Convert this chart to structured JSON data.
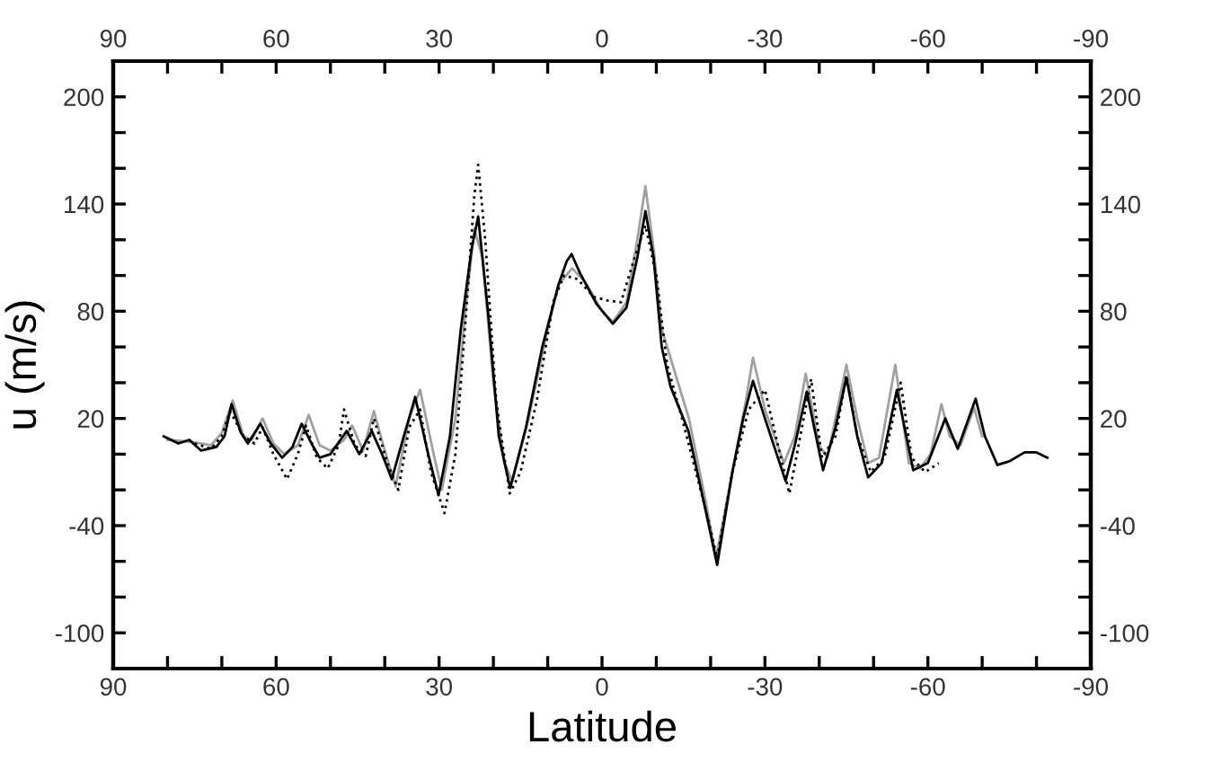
{
  "chart_data": {
    "type": "line",
    "xlabel": "Latitude",
    "ylabel": "u (m/s)",
    "xlim": [
      90,
      -90
    ],
    "xticks": [
      90,
      {
        "value": 80,
        "label": null
      },
      {
        "value": 70,
        "label": null
      },
      60,
      {
        "value": 50,
        "label": null
      },
      {
        "value": 40,
        "label": null
      },
      30,
      {
        "value": 20,
        "label": null
      },
      {
        "value": 10,
        "label": null
      },
      0,
      {
        "value": -10,
        "label": null
      },
      {
        "value": -20,
        "label": null
      },
      -30,
      {
        "value": -40,
        "label": null
      },
      {
        "value": -50,
        "label": null
      },
      -60,
      {
        "value": -70,
        "label": null
      },
      {
        "value": -80,
        "label": null
      },
      -90
    ],
    "x2lim": [
      90,
      -90
    ],
    "x2ticks": [
      90,
      {
        "value": 80,
        "label": null
      },
      {
        "value": 70,
        "label": null
      },
      60,
      {
        "value": 50,
        "label": null
      },
      {
        "value": 40,
        "label": null
      },
      30,
      {
        "value": 20,
        "label": null
      },
      {
        "value": 10,
        "label": null
      },
      0,
      {
        "value": -10,
        "label": null
      },
      {
        "value": -20,
        "label": null
      },
      -30,
      {
        "value": -40,
        "label": null
      },
      {
        "value": -50,
        "label": null
      },
      -60,
      {
        "value": -70,
        "label": null
      },
      {
        "value": -80,
        "label": null
      },
      -90
    ],
    "ylim": [
      -120,
      220
    ],
    "yticks": [
      -100,
      {
        "value": -80,
        "label": null
      },
      {
        "value": -60,
        "label": null
      },
      -40,
      {
        "value": -20,
        "label": null
      },
      {
        "value": 0,
        "label": null
      },
      20,
      {
        "value": 40,
        "label": null
      },
      {
        "value": 60,
        "label": null
      },
      80,
      {
        "value": 100,
        "label": null
      },
      {
        "value": 120,
        "label": null
      },
      140,
      {
        "value": 160,
        "label": null
      },
      {
        "value": 180,
        "label": null
      },
      200
    ],
    "y2lim": [
      -120,
      220
    ],
    "y2ticks": [
      -100,
      {
        "value": -80,
        "label": null
      },
      {
        "value": -60,
        "label": null
      },
      -40,
      {
        "value": -20,
        "label": null
      },
      {
        "value": 0,
        "label": null
      },
      20,
      {
        "value": 40,
        "label": null
      },
      {
        "value": 60,
        "label": null
      },
      80,
      {
        "value": 100,
        "label": null
      },
      {
        "value": 120,
        "label": null
      },
      140,
      {
        "value": 160,
        "label": null
      },
      {
        "value": 180,
        "label": null
      },
      200
    ],
    "grid": false,
    "legend": false,
    "series": [
      {
        "color": "#a0a0a0",
        "line_style": "solid",
        "x": [
          80,
          76,
          72,
          70,
          68,
          66,
          64.5,
          62.5,
          60.5,
          58.5,
          56,
          54,
          52,
          50,
          47.5,
          46,
          44,
          42,
          40,
          38,
          35.5,
          33.5,
          31,
          29.5,
          27,
          25,
          23.5,
          22,
          20,
          18,
          16.5,
          13.5,
          10,
          8,
          5.5,
          3,
          0,
          -2,
          -4.5,
          -6.5,
          -8,
          -9.5,
          -11,
          -13,
          -16,
          -19,
          -21,
          -24,
          -26.5,
          -27.8,
          -30,
          -33.5,
          -35.5,
          -37.5,
          -40,
          -41.5,
          -43,
          -45,
          -47,
          -49,
          -51,
          -54,
          -56.5,
          -58.5,
          -60.5,
          -62.5,
          -64,
          -66,
          -68.5,
          -70
        ],
        "values": [
          8,
          7,
          5,
          12,
          30,
          10,
          8,
          20,
          6,
          0,
          5,
          22,
          5,
          2,
          8,
          16,
          2,
          24,
          2,
          -18,
          20,
          36,
          0,
          -20,
          20,
          85,
          126,
          110,
          40,
          -5,
          -15,
          20,
          70,
          95,
          104,
          96,
          80,
          74,
          85,
          120,
          150,
          115,
          70,
          50,
          20,
          -25,
          -58,
          -10,
          30,
          54,
          25,
          -5,
          10,
          45,
          5,
          -2,
          20,
          50,
          20,
          -5,
          -2,
          50,
          -5,
          -8,
          0,
          28,
          10,
          5,
          26,
          10
        ]
      },
      {
        "color": "#000000",
        "line_style": "dotted",
        "x": [
          75,
          72,
          70,
          68.5,
          66,
          64,
          62.5,
          60.5,
          58,
          56,
          54.5,
          52.5,
          50.5,
          48.5,
          47.5,
          45.5,
          43.5,
          42,
          39.5,
          37.5,
          35.5,
          33.5,
          31.5,
          29,
          27,
          25,
          23.5,
          22.8,
          21.5,
          19.5,
          17,
          15,
          12,
          9,
          7,
          4.5,
          1.5,
          -1,
          -3.5,
          -6,
          -8,
          -10,
          -12,
          -15,
          -19,
          -21.2,
          -24,
          -27,
          -30,
          -32,
          -34.5,
          -36.5,
          -38.5,
          -40.5,
          -43,
          -45,
          -47,
          -49.5,
          -52,
          -55,
          -57,
          -59.5,
          -62
        ],
        "values": [
          6,
          3,
          10,
          24,
          10,
          6,
          15,
          0,
          -14,
          0,
          16,
          -2,
          -8,
          5,
          25,
          5,
          -1,
          20,
          -5,
          -20,
          15,
          25,
          -10,
          -33,
          0,
          80,
          145,
          162,
          120,
          30,
          -22,
          -10,
          30,
          85,
          100,
          98,
          88,
          86,
          85,
          110,
          128,
          100,
          50,
          17,
          -30,
          -58,
          -10,
          25,
          36,
          10,
          -22,
          10,
          42,
          -2,
          10,
          44,
          10,
          -10,
          -2,
          40,
          -2,
          -10,
          -5
        ]
      },
      {
        "color": "#000000",
        "line_style": "solid",
        "x": [
          80.7,
          78,
          76,
          73.8,
          71,
          69.5,
          68.2,
          66.5,
          65.2,
          62.9,
          61,
          58.9,
          57,
          55.3,
          53.5,
          52,
          50,
          47,
          44.7,
          42.4,
          40.5,
          38.7,
          36.5,
          34.4,
          32,
          30.1,
          28,
          26,
          24,
          22.8,
          21,
          19,
          16.9,
          14,
          11,
          8,
          6.5,
          5.6,
          4,
          1,
          -2,
          -4.5,
          -6.5,
          -8,
          -9.5,
          -11,
          -12.6,
          -15.9,
          -18.9,
          -21.2,
          -24,
          -26,
          -27.8,
          -30,
          -33.8,
          -35.5,
          -37.7,
          -40.7,
          -43,
          -45,
          -47,
          -49,
          -51.5,
          -54.3,
          -57.3,
          -60,
          -63.2,
          -65.5,
          -68.8,
          -70.5,
          -72.8,
          -75,
          -77.8,
          -80,
          -82
        ],
        "values": [
          10,
          6,
          8,
          2,
          4,
          10,
          28,
          12,
          6,
          17,
          6,
          -2,
          4,
          17,
          6,
          -2,
          0,
          13,
          0,
          13,
          0,
          -14,
          10,
          32,
          0,
          -23,
          10,
          70,
          115,
          133,
          80,
          10,
          -19,
          15,
          60,
          95,
          108,
          112,
          101,
          84,
          73,
          82,
          110,
          136,
          110,
          60,
          38,
          13,
          -29,
          -62,
          -10,
          20,
          41,
          20,
          -15,
          5,
          35,
          -9,
          15,
          43,
          10,
          -13,
          -5,
          36,
          -9,
          -5,
          20,
          3,
          31,
          10,
          -6,
          -4,
          1,
          1,
          -2
        ]
      }
    ]
  }
}
